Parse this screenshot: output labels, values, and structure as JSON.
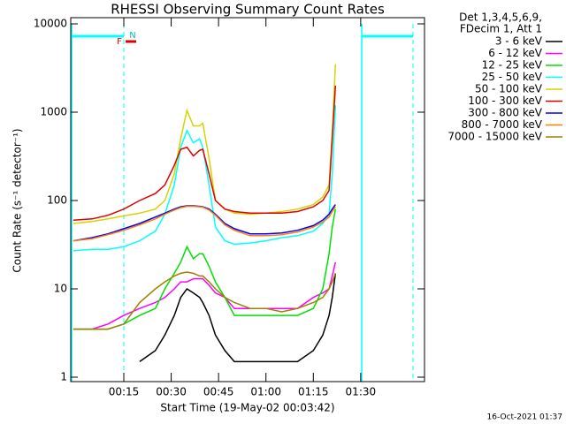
{
  "chart_data": {
    "type": "line",
    "title": "RHESSI Observing Summary Count Rates",
    "xlabel": "Start Time (19-May-02 00:03:42)",
    "ylabel": "Count Rate (s⁻¹ detector⁻¹)",
    "legend_title": [
      "Det 1,3,4,5,6,9,",
      "FDecim 1, Att 1"
    ],
    "annotations": [
      "F",
      "N"
    ],
    "timestamp": "16-Oct-2021 01:37",
    "log_y": true,
    "x": [
      -1,
      5,
      10,
      15,
      20,
      25,
      28,
      31,
      33,
      35,
      37,
      39,
      40,
      42,
      44,
      47,
      50,
      55,
      60,
      65,
      70,
      75,
      78,
      80,
      81,
      82
    ],
    "xlim": [
      -1.8,
      110.2
    ],
    "xticks": [
      {
        "value": 15,
        "label": "00:15"
      },
      {
        "value": 30,
        "label": "00:30"
      },
      {
        "value": 45,
        "label": "00:45"
      },
      {
        "value": 60,
        "label": "01:00"
      },
      {
        "value": 75,
        "label": "01:15"
      },
      {
        "value": 90,
        "label": "01:30"
      }
    ],
    "ylim": [
      1,
      10000
    ],
    "yticks": [
      1,
      10,
      100,
      1000,
      10000
    ],
    "series": [
      {
        "name": "3 - 6 keV",
        "color": "#000000",
        "values": [
          null,
          null,
          null,
          null,
          1.5,
          2,
          3,
          5,
          8,
          10,
          9,
          8,
          7,
          5,
          3,
          2,
          1.5,
          1.5,
          1.5,
          1.5,
          1.5,
          2,
          3,
          5,
          8,
          15
        ]
      },
      {
        "name": "6 - 12 keV",
        "color": "#ff00ff",
        "values": [
          3.5,
          3.5,
          4,
          5,
          6,
          7,
          8,
          10,
          12,
          12,
          13,
          13,
          13,
          11,
          9,
          8,
          6,
          6,
          6,
          6,
          6,
          8,
          9,
          10,
          14,
          20
        ]
      },
      {
        "name": "12 - 25 keV",
        "color": "#00e000",
        "values": [
          3.5,
          3.5,
          3.5,
          4,
          5,
          6,
          10,
          15,
          20,
          30,
          22,
          25,
          25,
          18,
          12,
          8,
          5,
          5,
          5,
          5,
          5,
          6,
          10,
          25,
          50,
          80
        ]
      },
      {
        "name": "25 - 50 keV",
        "color": "#00ffff",
        "values": [
          27,
          28,
          28,
          30,
          35,
          45,
          70,
          150,
          400,
          620,
          450,
          500,
          400,
          150,
          50,
          35,
          32,
          33,
          35,
          38,
          40,
          45,
          55,
          70,
          200,
          1200
        ]
      },
      {
        "name": "50 - 100 keV",
        "color": "#d4d400",
        "values": [
          55,
          58,
          62,
          67,
          72,
          80,
          100,
          200,
          500,
          1050,
          700,
          700,
          750,
          300,
          100,
          80,
          72,
          70,
          72,
          75,
          80,
          90,
          110,
          150,
          600,
          3500
        ]
      },
      {
        "name": "100 - 300 keV",
        "color": "#e00000",
        "values": [
          60,
          62,
          68,
          80,
          100,
          120,
          150,
          250,
          380,
          400,
          320,
          370,
          380,
          200,
          100,
          80,
          75,
          72,
          72,
          72,
          75,
          85,
          100,
          130,
          500,
          2000
        ]
      },
      {
        "name": "300 - 800 keV",
        "color": "#0000ff",
        "values": [
          35,
          38,
          42,
          48,
          55,
          65,
          72,
          80,
          85,
          87,
          87,
          86,
          85,
          80,
          70,
          55,
          48,
          42,
          42,
          43,
          46,
          52,
          60,
          70,
          80,
          90
        ]
      },
      {
        "name": "800 - 7000 keV",
        "color": "#ff8000",
        "values": [
          35,
          37,
          41,
          46,
          53,
          62,
          70,
          78,
          83,
          86,
          86,
          85,
          84,
          78,
          68,
          53,
          46,
          40,
          40,
          41,
          44,
          50,
          57,
          65,
          75,
          85
        ]
      },
      {
        "name": "7000 - 15000 keV",
        "color": "#a08000",
        "values": [
          3.5,
          3.5,
          3.5,
          4,
          7,
          10,
          12,
          14,
          15,
          15.5,
          15,
          14,
          14,
          12,
          10,
          8,
          7,
          6,
          6,
          5.5,
          6,
          7,
          8,
          10,
          12,
          15
        ]
      }
    ]
  }
}
